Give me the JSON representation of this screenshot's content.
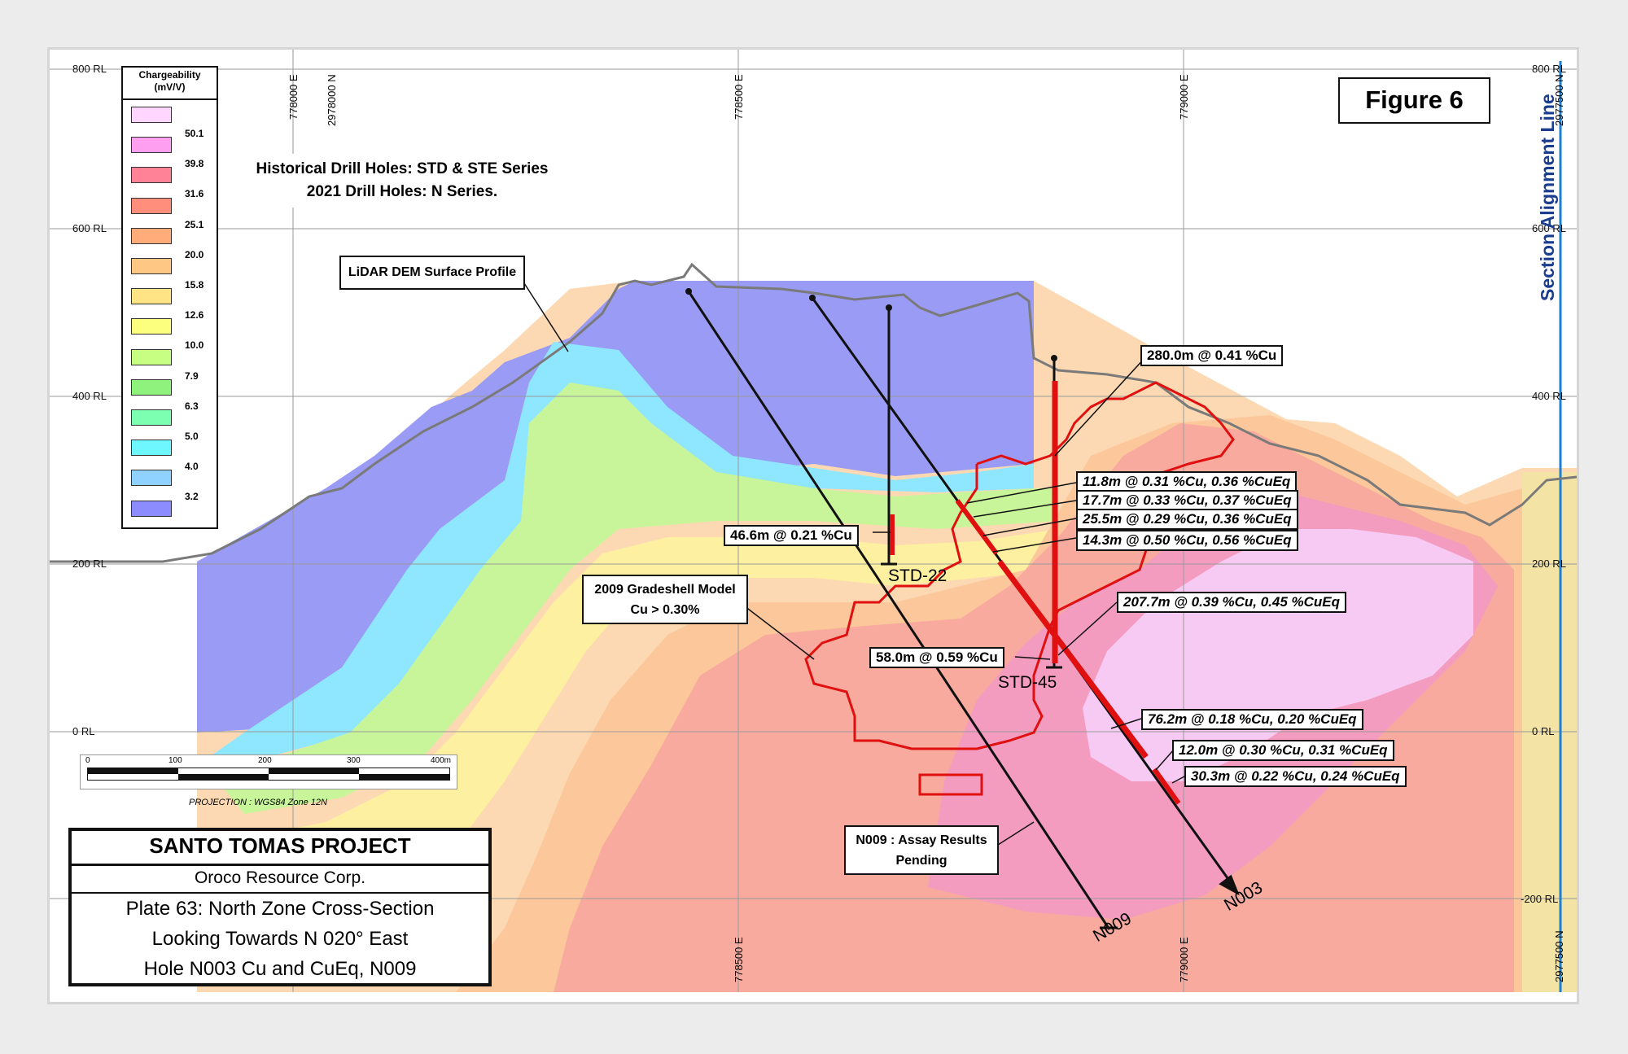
{
  "figure_label": "Figure 6",
  "section_alignment_label": "Section Alignment Line",
  "note": {
    "line1": "Historical Drill Holes: STD & STE Series",
    "line2": "2021 Drill Holes: N Series."
  },
  "lidar_label": "LiDAR DEM Surface Profile",
  "gradeshell": {
    "line1": "2009 Gradeshell Model",
    "line2": "Cu > 0.30%"
  },
  "n009_note": {
    "line1": "N009 : Assay Results",
    "line2": "Pending"
  },
  "legend": {
    "title_line1": "Chargeability",
    "title_line2": "(mV/V)",
    "classes": [
      {
        "color": "#ffd6ff",
        "value": "50.1"
      },
      {
        "color": "#ff9ff0",
        "value": "39.8"
      },
      {
        "color": "#ff8297",
        "value": "31.6"
      },
      {
        "color": "#ff8f7c",
        "value": "25.1"
      },
      {
        "color": "#ffab7a",
        "value": "20.0"
      },
      {
        "color": "#ffc784",
        "value": "15.8"
      },
      {
        "color": "#ffe486",
        "value": "12.6"
      },
      {
        "color": "#fbff7d",
        "value": "10.0"
      },
      {
        "color": "#c6ff82",
        "value": "7.9"
      },
      {
        "color": "#8ff27d",
        "value": "6.3"
      },
      {
        "color": "#7dffb2",
        "value": "5.0"
      },
      {
        "color": "#6ff7ff",
        "value": "4.0"
      },
      {
        "color": "#8fd2ff",
        "value": "3.2"
      },
      {
        "color": "#8c8cff",
        "value": ""
      }
    ]
  },
  "rl_labels": [
    "800 RL",
    "600 RL",
    "400 RL",
    "200 RL",
    "0 RL",
    "-200 RL"
  ],
  "easting_labels": {
    "e778000": "778000 E",
    "n2978000": "2978000 N",
    "e778500": "778500 E",
    "e779000": "779000 E",
    "n2977500": "2977500 N"
  },
  "scale_bar": {
    "ticks": [
      "0",
      "100",
      "200",
      "300",
      "400m"
    ],
    "projection": "PROJECTION : WGS84 Zone 12N"
  },
  "title_block": {
    "project": "SANTO TOMAS PROJECT",
    "company": "Oroco Resource Corp.",
    "line1": "Plate 63: North Zone Cross-Section",
    "line2": "Looking Towards N 020° East",
    "line3": "Hole N003 Cu and CuEq, N009"
  },
  "holes": {
    "std22": "STD-22",
    "std45": "STD-45",
    "n009": "N009",
    "n003": "N003"
  },
  "intercepts": {
    "i280": "280.0m @ 0.41 %Cu",
    "i118": "11.8m @ 0.31 %Cu, 0.36 %CuEq",
    "i177": "17.7m @ 0.33 %Cu, 0.37 %CuEq",
    "i255": "25.5m @ 0.29 %Cu, 0.36 %CuEq",
    "i143": "14.3m @ 0.50 %Cu, 0.56 %CuEq",
    "i466": "46.6m @ 0.21 %Cu",
    "i2077": "207.7m @ 0.39 %Cu, 0.45 %CuEq",
    "i580": "58.0m @ 0.59 %Cu",
    "i762": "76.2m @ 0.18 %Cu, 0.20 %CuEq",
    "i120": "12.0m @ 0.30 %Cu, 0.31 %CuEq",
    "i303": "30.3m @ 0.22 %Cu, 0.24 %CuEq"
  },
  "colors": {
    "drill_hole": "#111111",
    "intercept": "#e01010",
    "terrain": "#7a7a7a",
    "alignment": "#1a3d8f"
  }
}
